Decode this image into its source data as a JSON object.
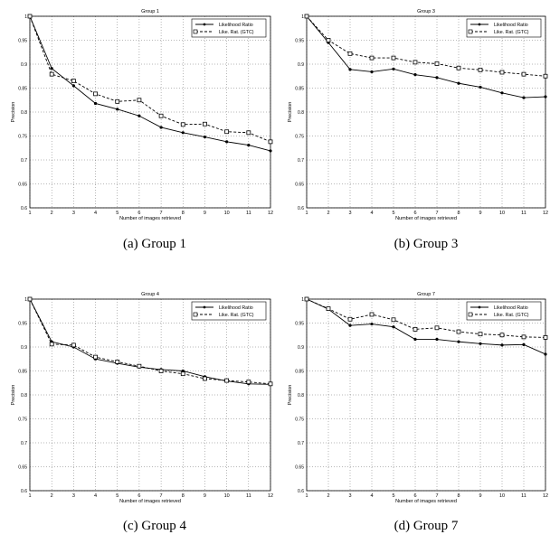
{
  "chart_data": [
    {
      "type": "line",
      "title": "Group 1",
      "caption": "(a) Group 1",
      "xlabel": "Number of images retrieved",
      "ylabel": "Precision",
      "xlim": [
        1,
        12
      ],
      "ylim": [
        0.6,
        1.0
      ],
      "grid": true,
      "legend_position": "top-right",
      "x": [
        1,
        2,
        3,
        4,
        5,
        6,
        7,
        8,
        9,
        10,
        11,
        12
      ],
      "series": [
        {
          "name": "Likelihood Ratio",
          "style": "solid-dot",
          "values": [
            1.0,
            0.891,
            0.855,
            0.818,
            0.806,
            0.792,
            0.768,
            0.757,
            0.748,
            0.738,
            0.731,
            0.719
          ]
        },
        {
          "name": "Like. Rat. (GTC)",
          "style": "dashed-square",
          "values": [
            1.0,
            0.879,
            0.865,
            0.838,
            0.822,
            0.825,
            0.792,
            0.774,
            0.775,
            0.759,
            0.757,
            0.738
          ]
        }
      ]
    },
    {
      "type": "line",
      "title": "Group 3",
      "caption": "(b) Group 3",
      "xlabel": "Number of images retrieved",
      "ylabel": "Precision",
      "xlim": [
        1,
        12
      ],
      "ylim": [
        0.6,
        1.0
      ],
      "grid": true,
      "legend_position": "top-right",
      "x": [
        1,
        2,
        3,
        4,
        5,
        6,
        7,
        8,
        9,
        10,
        11,
        12
      ],
      "series": [
        {
          "name": "Likelihood Ratio",
          "style": "solid-dot",
          "values": [
            1.0,
            0.945,
            0.889,
            0.884,
            0.89,
            0.878,
            0.872,
            0.86,
            0.852,
            0.84,
            0.83,
            0.832
          ]
        },
        {
          "name": "Like. Rat. (GTC)",
          "style": "dashed-square",
          "values": [
            1.0,
            0.95,
            0.922,
            0.913,
            0.913,
            0.904,
            0.901,
            0.892,
            0.888,
            0.883,
            0.879,
            0.875
          ]
        }
      ]
    },
    {
      "type": "line",
      "title": "Group 4",
      "caption": "(c) Group 4",
      "xlabel": "Number of images retrieved",
      "ylabel": "Precision",
      "xlim": [
        1,
        12
      ],
      "ylim": [
        0.6,
        1.0
      ],
      "grid": true,
      "legend_position": "top-right",
      "x": [
        1,
        2,
        3,
        4,
        5,
        6,
        7,
        8,
        9,
        10,
        11,
        12
      ],
      "series": [
        {
          "name": "Likelihood Ratio",
          "style": "solid-dot",
          "values": [
            1.0,
            0.911,
            0.9,
            0.875,
            0.866,
            0.858,
            0.853,
            0.85,
            0.838,
            0.829,
            0.823,
            0.822
          ]
        },
        {
          "name": "Like. Rat. (GTC)",
          "style": "dashed-square",
          "values": [
            1.0,
            0.906,
            0.904,
            0.879,
            0.869,
            0.86,
            0.85,
            0.844,
            0.834,
            0.83,
            0.827,
            0.823
          ]
        }
      ]
    },
    {
      "type": "line",
      "title": "Group 7",
      "caption": "(d) Group 7",
      "xlabel": "Number of images retrieved",
      "ylabel": "Precision",
      "xlim": [
        1,
        12
      ],
      "ylim": [
        0.6,
        1.0
      ],
      "grid": true,
      "legend_position": "top-right",
      "x": [
        1,
        2,
        3,
        4,
        5,
        6,
        7,
        8,
        9,
        10,
        11,
        12
      ],
      "series": [
        {
          "name": "Likelihood Ratio",
          "style": "solid-dot",
          "values": [
            1.0,
            0.979,
            0.945,
            0.948,
            0.942,
            0.916,
            0.916,
            0.911,
            0.907,
            0.904,
            0.905,
            0.885
          ]
        },
        {
          "name": "Like. Rat. (GTC)",
          "style": "dashed-square",
          "values": [
            1.0,
            0.98,
            0.958,
            0.968,
            0.957,
            0.937,
            0.94,
            0.932,
            0.927,
            0.925,
            0.921,
            0.92
          ]
        }
      ]
    }
  ],
  "yticks": [
    "0.6",
    "0.65",
    "0.7",
    "0.75",
    "0.8",
    "0.85",
    "0.9",
    "0.95",
    "1"
  ],
  "xticks": [
    "1",
    "2",
    "3",
    "4",
    "5",
    "6",
    "7",
    "8",
    "9",
    "10",
    "11",
    "12"
  ]
}
